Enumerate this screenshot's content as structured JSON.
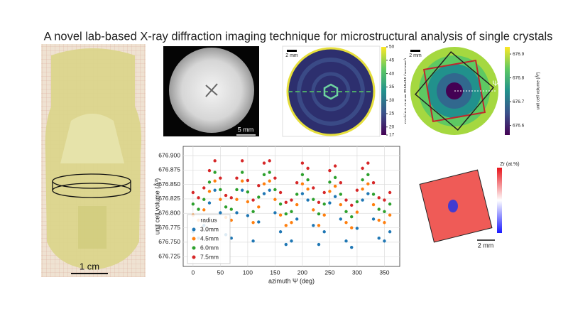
{
  "title": "A novel lab-based X-ray diffraction imaging technique for microstructural analysis of single crystals",
  "crystal_photo": {
    "scale_label": "1 cm"
  },
  "wafer_photo": {
    "scale_label": "5 mm"
  },
  "fwhm_map": {
    "scale_label": "2 mm",
    "colorbar": {
      "label": "rocking curve FWHM (arcsec)",
      "lim": [
        17,
        50
      ],
      "ticks": [
        17,
        20,
        25,
        30,
        35,
        40,
        45,
        50
      ]
    }
  },
  "volume_map": {
    "scale_label": "2 mm",
    "angle_label": "Ψ",
    "colorbar": {
      "label": "unit cell volume (Å³)",
      "lim": [
        676.56,
        676.93
      ],
      "ticks": [
        676.6,
        676.7,
        676.8,
        676.9
      ]
    }
  },
  "zr_map": {
    "scale_label": "2 mm",
    "colorbar": {
      "label": "Zr (at.%)"
    }
  },
  "chart_data": {
    "type": "scatter",
    "xlabel": "azimuth Ψ (deg)",
    "ylabel": "unit cell volume (Å³)",
    "x": [
      0,
      10,
      20,
      30,
      40,
      50,
      60,
      70,
      80,
      90,
      100,
      110,
      120,
      130,
      140,
      150,
      160,
      170,
      180,
      190,
      200,
      210,
      220,
      230,
      240,
      250,
      260,
      270,
      280,
      290,
      300,
      310,
      320,
      330,
      340,
      350,
      360
    ],
    "series": [
      {
        "name": "3.0mm",
        "color": "#1f77b4",
        "values": [
          676.768,
          676.757,
          676.779,
          676.818,
          676.84,
          676.801,
          676.763,
          676.757,
          676.801,
          676.84,
          676.796,
          676.752,
          676.785,
          676.834,
          676.84,
          676.801,
          676.768,
          676.746,
          676.752,
          676.79,
          676.834,
          676.823,
          676.779,
          676.746,
          676.768,
          676.818,
          676.829,
          676.79,
          676.752,
          676.741,
          676.774,
          676.823,
          676.834,
          676.79,
          676.757,
          676.752,
          676.768
        ]
      },
      {
        "name": "4.5mm",
        "color": "#ff7f0e",
        "values": [
          676.797,
          676.788,
          676.806,
          676.838,
          676.856,
          676.824,
          676.793,
          676.788,
          676.824,
          676.856,
          676.82,
          676.784,
          676.811,
          676.851,
          676.856,
          676.824,
          676.797,
          676.779,
          676.784,
          676.815,
          676.851,
          676.842,
          676.806,
          676.779,
          676.797,
          676.838,
          676.847,
          676.815,
          676.784,
          676.775,
          676.802,
          676.842,
          676.851,
          676.815,
          676.788,
          676.784,
          676.797
        ]
      },
      {
        "name": "6.0mm",
        "color": "#2ca02c",
        "values": [
          676.816,
          676.807,
          676.824,
          676.854,
          676.871,
          676.841,
          676.811,
          676.807,
          676.841,
          676.871,
          676.837,
          676.803,
          676.828,
          676.867,
          676.871,
          676.841,
          676.816,
          676.799,
          676.803,
          676.833,
          676.867,
          676.858,
          676.824,
          676.799,
          676.816,
          676.854,
          676.862,
          676.833,
          676.803,
          676.794,
          676.82,
          676.858,
          676.867,
          676.833,
          676.807,
          676.803,
          676.816
        ]
      },
      {
        "name": "7.5mm",
        "color": "#d62728",
        "values": [
          676.836,
          676.827,
          676.844,
          676.874,
          676.891,
          676.861,
          676.831,
          676.827,
          676.861,
          676.891,
          676.857,
          676.823,
          676.848,
          676.887,
          676.891,
          676.861,
          676.836,
          676.819,
          676.823,
          676.853,
          676.887,
          676.878,
          676.844,
          676.819,
          676.836,
          676.874,
          676.882,
          676.853,
          676.823,
          676.814,
          676.84,
          676.878,
          676.887,
          676.853,
          676.827,
          676.823,
          676.836
        ]
      }
    ],
    "legend_title": "radius",
    "legend": "lower left",
    "grid": true,
    "xlim": [
      -18,
      378
    ],
    "xticks": [
      0,
      50,
      100,
      150,
      200,
      250,
      300,
      350
    ],
    "ylim": [
      676.708,
      676.916
    ],
    "yticks": [
      676.725,
      {
        "value": 676.75,
        "label": "676.750"
      },
      676.775,
      {
        "value": 676.8,
        "label": "676.800"
      },
      676.825,
      {
        "value": 676.85,
        "label": "676.850"
      },
      676.875,
      {
        "value": 676.9,
        "label": "676.900"
      }
    ]
  }
}
